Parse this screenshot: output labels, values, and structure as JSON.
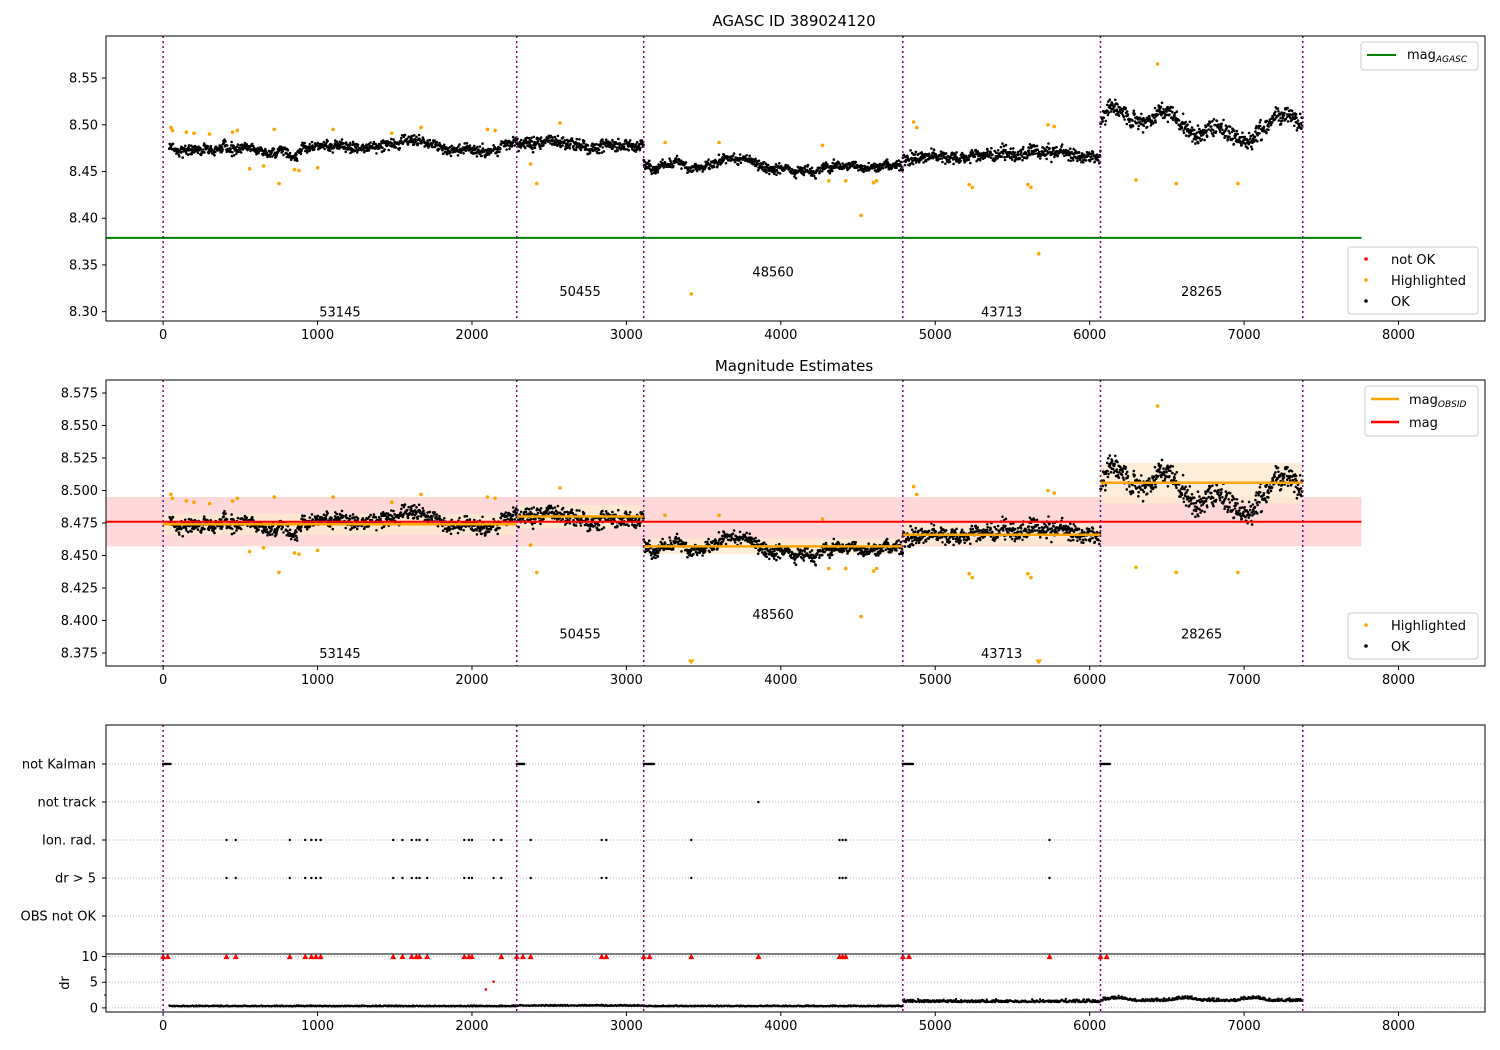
{
  "figure": {
    "panels": [
      {
        "title": "AGASC ID 389024120"
      },
      {
        "title": "Magnitude Estimates"
      },
      {
        "title": ""
      }
    ]
  },
  "colors": {
    "ok": "#000000",
    "highlighted": "#ffa500",
    "not_ok": "#ff0000",
    "mag_agasc": "#008000",
    "mag_obsid": "#ffa500",
    "mag": "#ff0000",
    "obsid_boundary": "#800080",
    "mag_band": "#ffcccc",
    "obsid_band": "#fde9d0"
  },
  "chart_data": [
    {
      "type": "scatter",
      "title": "AGASC ID 389024120",
      "xlim": [
        -370,
        8560
      ],
      "ylim": [
        8.29,
        8.595
      ],
      "xticks": [
        0,
        1000,
        2000,
        3000,
        4000,
        5000,
        6000,
        7000,
        8000
      ],
      "yticks": [
        "8.30",
        "8.35",
        "8.40",
        "8.45",
        "8.50",
        "8.55"
      ],
      "obsid_boundaries": [
        0,
        2290,
        3112,
        4790,
        6070,
        7380
      ],
      "obsid_labels": [
        {
          "label": "53145",
          "x": 1145,
          "y": 8.3
        },
        {
          "label": "50455",
          "x": 2700,
          "y": 8.322
        },
        {
          "label": "48560",
          "x": 3950,
          "y": 8.343
        },
        {
          "label": "43713",
          "x": 5430,
          "y": 8.3
        },
        {
          "label": "28265",
          "x": 6725,
          "y": 8.322
        }
      ],
      "reference_line": {
        "name": "mag_AGASC",
        "y": 8.379,
        "x": [
          -370,
          7760
        ]
      },
      "legends": [
        {
          "position": "upper-right",
          "entries": [
            {
              "label": "mag",
              "sub": "AGASC",
              "kind": "line"
            }
          ]
        },
        {
          "position": "lower-right",
          "entries": [
            {
              "label": "not OK",
              "kind": "dot",
              "color_key": "not_ok"
            },
            {
              "label": "Highlighted",
              "kind": "dot",
              "color_key": "highlighted"
            },
            {
              "label": "OK",
              "kind": "dot",
              "color_key": "ok"
            }
          ]
        }
      ],
      "series": [
        {
          "segment": [
            40,
            2290
          ],
          "level": 8.474,
          "spread": 0.009
        },
        {
          "segment": [
            2290,
            3112
          ],
          "level": 8.48,
          "spread": 0.01
        },
        {
          "segment": [
            3112,
            4790
          ],
          "level": 8.457,
          "spread": 0.008
        },
        {
          "segment": [
            4790,
            6070
          ],
          "level": 8.466,
          "spread": 0.011
        },
        {
          "segment": [
            6070,
            7380
          ],
          "level": 8.505,
          "spread": 0.015
        }
      ],
      "highlighted_points": [
        [
          50,
          8.497
        ],
        [
          60,
          8.494
        ],
        [
          150,
          8.492
        ],
        [
          200,
          8.491
        ],
        [
          300,
          8.49
        ],
        [
          450,
          8.492
        ],
        [
          480,
          8.494
        ],
        [
          560,
          8.453
        ],
        [
          650,
          8.456
        ],
        [
          720,
          8.495
        ],
        [
          750,
          8.437
        ],
        [
          850,
          8.452
        ],
        [
          880,
          8.451
        ],
        [
          1000,
          8.454
        ],
        [
          1100,
          8.495
        ],
        [
          1480,
          8.491
        ],
        [
          1670,
          8.497
        ],
        [
          2100,
          8.495
        ],
        [
          2150,
          8.494
        ],
        [
          2380,
          8.458
        ],
        [
          2420,
          8.437
        ],
        [
          2570,
          8.502
        ],
        [
          3250,
          8.481
        ],
        [
          3420,
          8.319
        ],
        [
          3600,
          8.481
        ],
        [
          4270,
          8.478
        ],
        [
          4310,
          8.44
        ],
        [
          4420,
          8.44
        ],
        [
          4520,
          8.403
        ],
        [
          4600,
          8.438
        ],
        [
          4620,
          8.44
        ],
        [
          4860,
          8.503
        ],
        [
          4880,
          8.497
        ],
        [
          5220,
          8.436
        ],
        [
          5240,
          8.433
        ],
        [
          5600,
          8.436
        ],
        [
          5620,
          8.433
        ],
        [
          5670,
          8.362
        ],
        [
          5730,
          8.5
        ],
        [
          5770,
          8.498
        ],
        [
          6300,
          8.441
        ],
        [
          6440,
          8.565
        ],
        [
          6560,
          8.437
        ],
        [
          6960,
          8.437
        ]
      ]
    },
    {
      "type": "scatter",
      "title": "Magnitude Estimates",
      "xlim": [
        -370,
        8560
      ],
      "ylim": [
        8.365,
        8.585
      ],
      "xticks": [
        0,
        1000,
        2000,
        3000,
        4000,
        5000,
        6000,
        7000,
        8000
      ],
      "yticks": [
        "8.375",
        "8.400",
        "8.425",
        "8.450",
        "8.475",
        "8.500",
        "8.525",
        "8.550",
        "8.575"
      ],
      "obsid_boundaries": [
        0,
        2290,
        3112,
        4790,
        6070,
        7380
      ],
      "obsid_labels": [
        {
          "label": "53145",
          "x": 1145,
          "y": 8.375
        },
        {
          "label": "50455",
          "x": 2700,
          "y": 8.39
        },
        {
          "label": "48560",
          "x": 3950,
          "y": 8.405
        },
        {
          "label": "43713",
          "x": 5430,
          "y": 8.375
        },
        {
          "label": "28265",
          "x": 6725,
          "y": 8.39
        }
      ],
      "mag": {
        "y": 8.476,
        "band": [
          8.457,
          8.495
        ],
        "x": [
          -370,
          7760
        ]
      },
      "mag_obsid": [
        {
          "segment": [
            0,
            2290
          ],
          "y": 8.474,
          "band": [
            8.466,
            8.482
          ]
        },
        {
          "segment": [
            2290,
            3112
          ],
          "y": 8.48,
          "band": [
            8.471,
            8.489
          ]
        },
        {
          "segment": [
            3112,
            4790
          ],
          "y": 8.457,
          "band": [
            8.451,
            8.463
          ]
        },
        {
          "segment": [
            4790,
            6070
          ],
          "y": 8.466,
          "band": [
            8.458,
            8.474
          ]
        },
        {
          "segment": [
            6070,
            7380
          ],
          "y": 8.506,
          "band": [
            8.49,
            8.521
          ]
        }
      ],
      "legends": [
        {
          "position": "upper-right",
          "entries": [
            {
              "label": "mag",
              "sub": "OBSID",
              "kind": "line",
              "color_key": "mag_obsid"
            },
            {
              "label": "mag",
              "sub": "",
              "kind": "line",
              "color_key": "mag"
            }
          ]
        },
        {
          "position": "lower-right",
          "entries": [
            {
              "label": "Highlighted",
              "kind": "dot",
              "color_key": "highlighted"
            },
            {
              "label": "OK",
              "kind": "dot",
              "color_key": "ok"
            }
          ]
        }
      ],
      "below_range_markers": [
        3420,
        5670
      ]
    },
    {
      "type": "scatter",
      "title": "",
      "xlim": [
        -370,
        8560
      ],
      "flag_rows": [
        "not Kalman",
        "not track",
        "Ion. rad.",
        "dr > 5",
        "OBS not OK"
      ],
      "flags": {
        "not Kalman": [
          [
            0,
            50
          ],
          [
            2290,
            2340
          ],
          [
            3112,
            3180
          ],
          [
            4790,
            4860
          ],
          [
            6070,
            6130
          ]
        ],
        "not track": [
          3855
        ],
        "Ion. rad.": [
          410,
          470,
          820,
          920,
          960,
          990,
          1020,
          1490,
          1550,
          1610,
          1640,
          1660,
          1710,
          1950,
          1980,
          2000,
          2140,
          2190,
          2380,
          2840,
          2870,
          3420,
          4380,
          4400,
          4420,
          5740
        ],
        "dr > 5": [
          410,
          470,
          820,
          920,
          960,
          990,
          1020,
          1490,
          1550,
          1610,
          1640,
          1660,
          1710,
          1950,
          1980,
          2000,
          2140,
          2190,
          2380,
          2840,
          2870,
          3420,
          4380,
          4400,
          4420,
          5740
        ],
        "OBS not OK": []
      },
      "dr": {
        "ylabel": "dr",
        "yticks": [
          "0",
          "5",
          "10"
        ],
        "ylim": [
          -0.8,
          10.5
        ],
        "segments": [
          {
            "segment": [
              40,
              2290
            ],
            "level": 0.3
          },
          {
            "segment": [
              2290,
              3112
            ],
            "level": 0.4
          },
          {
            "segment": [
              3112,
              4790
            ],
            "level": 0.3
          },
          {
            "segment": [
              4790,
              6070
            ],
            "level": 1.1
          },
          {
            "segment": [
              6070,
              7380
            ],
            "level": 1.3
          }
        ],
        "clipped_points": [
          0,
          30,
          2290,
          2330,
          3112,
          3150,
          4790,
          4830,
          6070,
          6110,
          410,
          470,
          820,
          920,
          960,
          990,
          1020,
          1490,
          1550,
          1610,
          1640,
          1660,
          1710,
          1950,
          1980,
          2000,
          2190,
          2380,
          2840,
          2870,
          3420,
          3855,
          4380,
          4400,
          4420,
          5740
        ],
        "outliers": [
          [
            2090,
            3.6
          ],
          [
            2140,
            5.1
          ]
        ]
      }
    }
  ]
}
